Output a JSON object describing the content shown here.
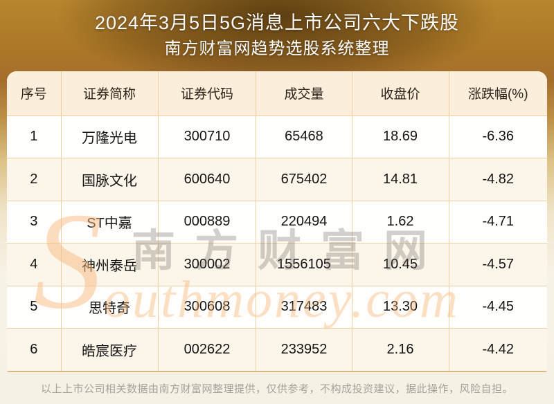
{
  "title": {
    "line1": "2024年3月5日5G消息上市公司六大下跌股",
    "line2": "南方财富网趋势选股系统整理"
  },
  "table": {
    "headers": [
      "序号",
      "证券简称",
      "证券代码",
      "成交量",
      "收盘价",
      "涨跌幅(%)"
    ],
    "rows": [
      [
        "1",
        "万隆光电",
        "300710",
        "65468",
        "18.69",
        "-6.36"
      ],
      [
        "2",
        "国脉文化",
        "600640",
        "675402",
        "14.81",
        "-4.82"
      ],
      [
        "3",
        "ST中嘉",
        "000889",
        "220494",
        "1.62",
        "-4.71"
      ],
      [
        "4",
        "神州泰岳",
        "300002",
        "1556105",
        "10.45",
        "-4.57"
      ],
      [
        "5",
        "思特奇",
        "300608",
        "317483",
        "13.30",
        "-4.45"
      ],
      [
        "6",
        "皓宸医疗",
        "002622",
        "233952",
        "2.16",
        "-4.42"
      ]
    ]
  },
  "watermark": {
    "logo_s": "S",
    "cn": "南方财富网",
    "en": "outhmoney.com"
  },
  "footer": {
    "disclaimer": "以上上市公司相关数据由南方财富网整理提供，仅供参考，不构成投资建议，据此操作，风险自担。"
  },
  "colors": {
    "background_gold": "#b8862e",
    "background_dark_vignette": "#6f4d1a",
    "background_bottom_cream": "#f6f1e5",
    "header_bg": "#fbeedb",
    "row_even_bg": "#fcf5e9",
    "row_odd_bg": "#fffefc",
    "grid_border": "#ecd0a2",
    "title_text": "#ffffff",
    "cell_text": "#141414",
    "footer_text": "#a5a29c",
    "watermark_orange": "#f6b16c",
    "watermark_gray": "#696460"
  },
  "chart_data": {
    "type": "table",
    "title": "2024年3月5日5G消息上市公司六大下跌股",
    "subtitle": "南方财富网趋势选股系统整理",
    "columns": [
      "序号",
      "证券简称",
      "证券代码",
      "成交量",
      "收盘价",
      "涨跌幅(%)"
    ],
    "rows": [
      {
        "序号": 1,
        "证券简称": "万隆光电",
        "证券代码": "300710",
        "成交量": 65468,
        "收盘价": 18.69,
        "涨跌幅(%)": -6.36
      },
      {
        "序号": 2,
        "证券简称": "国脉文化",
        "证券代码": "600640",
        "成交量": 675402,
        "收盘价": 14.81,
        "涨跌幅(%)": -4.82
      },
      {
        "序号": 3,
        "证券简称": "ST中嘉",
        "证券代码": "000889",
        "成交量": 220494,
        "收盘价": 1.62,
        "涨跌幅(%)": -4.71
      },
      {
        "序号": 4,
        "证券简称": "神州泰岳",
        "证券代码": "300002",
        "成交量": 1556105,
        "收盘价": 10.45,
        "涨跌幅(%)": -4.57
      },
      {
        "序号": 5,
        "证券简称": "思特奇",
        "证券代码": "300608",
        "成交量": 317483,
        "收盘价": 13.3,
        "涨跌幅(%)": -4.45
      },
      {
        "序号": 6,
        "证券简称": "皓宸医疗",
        "证券代码": "002622",
        "成交量": 233952,
        "收盘价": 2.16,
        "涨跌幅(%)": -4.42
      }
    ]
  }
}
